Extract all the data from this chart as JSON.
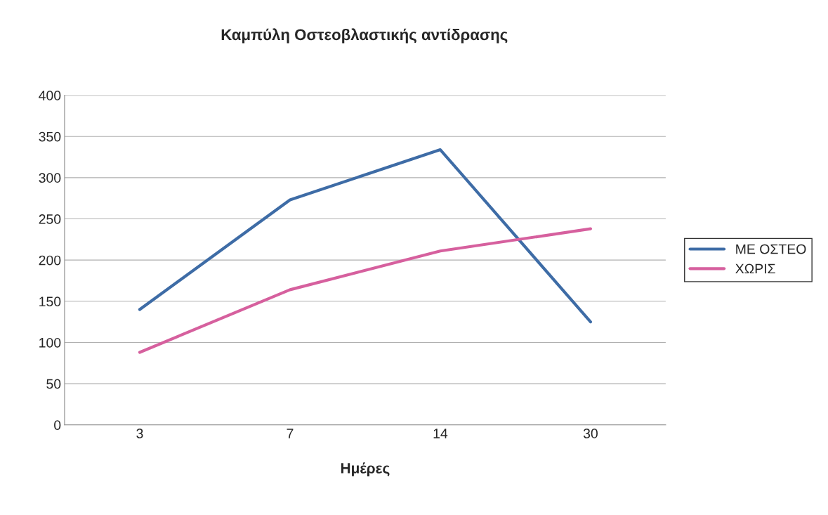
{
  "chart_data": {
    "type": "line",
    "title": "Καμπύλη Οστεοβλαστικής αντίδρασης",
    "xlabel": "Ημέρες",
    "categories": [
      "3",
      "7",
      "14",
      "30"
    ],
    "series": [
      {
        "name": "ΜΕ ΟΣΤΕΟ",
        "color": "#3e6ca6",
        "values": [
          140,
          273,
          334,
          125
        ]
      },
      {
        "name": "ΧΩΡΙΣ",
        "color": "#d6609e",
        "values": [
          88,
          164,
          211,
          238
        ]
      }
    ],
    "ylim": [
      0,
      400
    ],
    "yticks": [
      0,
      50,
      100,
      150,
      200,
      250,
      300,
      350,
      400
    ],
    "grid": "y",
    "legend": "right",
    "marker": "none",
    "line_style": "solid"
  }
}
